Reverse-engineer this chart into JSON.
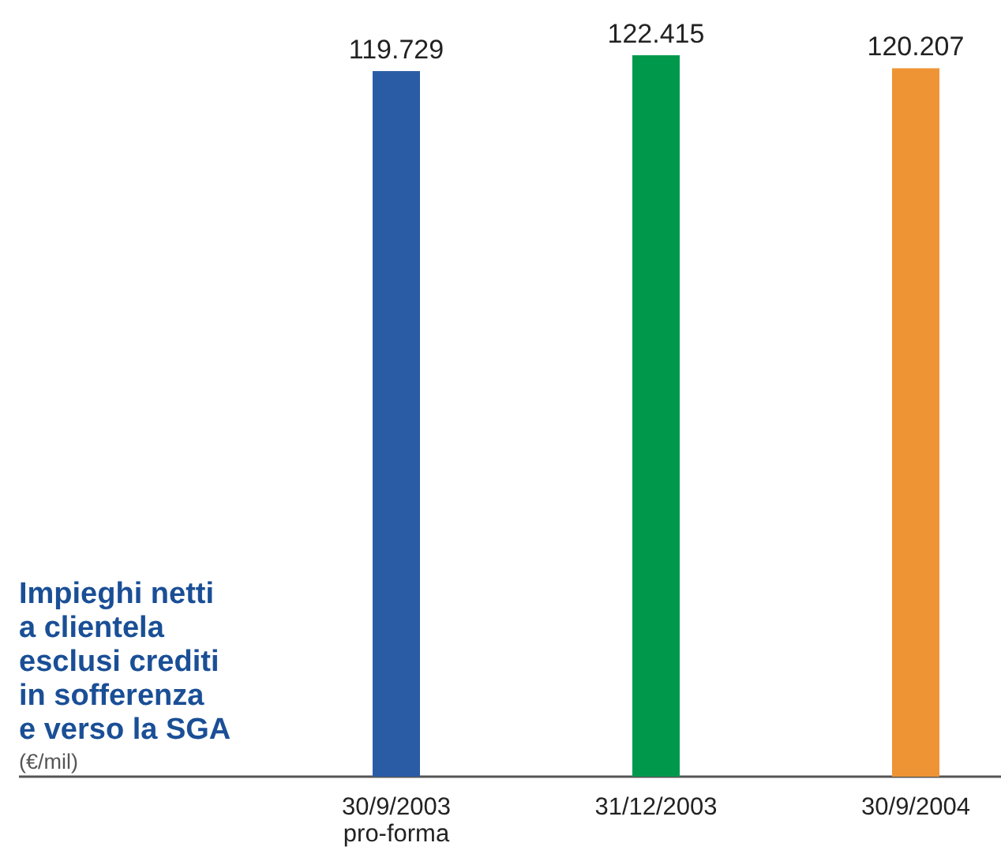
{
  "chart_data": {
    "type": "bar",
    "title": "Impieghi netti\na clientela\nesclusi crediti\nin sofferenza\ne verso la SGA",
    "subtitle": "(€/mil)",
    "categories": [
      "30/9/2003\npro-forma",
      "31/12/2003",
      "30/9/2004"
    ],
    "values": [
      119729,
      122415,
      120207
    ],
    "value_labels": [
      "119.729",
      "122.415",
      "120.207"
    ],
    "colors": [
      "#2a5ca6",
      "#00994c",
      "#ee9435"
    ]
  }
}
